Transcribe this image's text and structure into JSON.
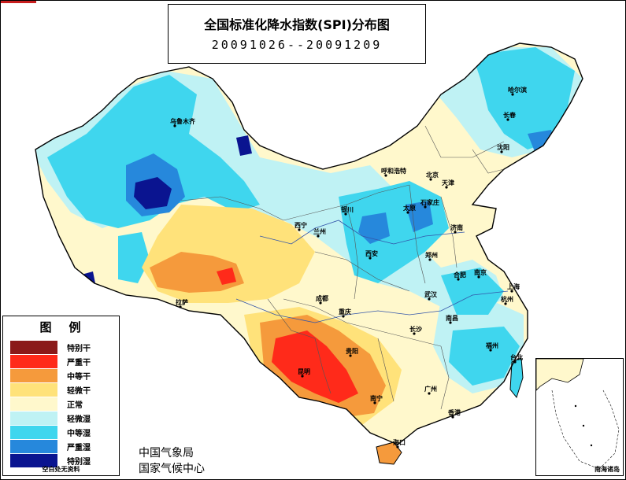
{
  "title": "全国标准化降水指数(SPI)分布图",
  "date_range": "20091026--20091209",
  "legend": {
    "title": "图例",
    "items": [
      {
        "label": "特别干",
        "color": "#8b1a1a"
      },
      {
        "label": "严重干",
        "color": "#ff2a1a"
      },
      {
        "label": "中等干",
        "color": "#f59a3c"
      },
      {
        "label": "轻微干",
        "color": "#ffe27a"
      },
      {
        "label": "正常",
        "color": "#fff8cc"
      },
      {
        "label": "轻微湿",
        "color": "#bff2f4"
      },
      {
        "label": "中等湿",
        "color": "#3fd6ee"
      },
      {
        "label": "严重湿",
        "color": "#2688dc"
      },
      {
        "label": "特别湿",
        "color": "#0a1490"
      }
    ],
    "note": "空白处无资料"
  },
  "organizations": [
    "中国气象局",
    "国家气候中心"
  ],
  "inset_label": "南海诸岛",
  "cities": [
    {
      "name": "乌鲁木齐"
    },
    {
      "name": "哈尔滨"
    },
    {
      "name": "长春"
    },
    {
      "name": "沈阳"
    },
    {
      "name": "呼和浩特"
    },
    {
      "name": "北京"
    },
    {
      "name": "天津"
    },
    {
      "name": "石家庄"
    },
    {
      "name": "太原"
    },
    {
      "name": "银川"
    },
    {
      "name": "济南"
    },
    {
      "name": "西宁"
    },
    {
      "name": "兰州"
    },
    {
      "name": "郑州"
    },
    {
      "name": "西安"
    },
    {
      "name": "合肥"
    },
    {
      "name": "南京"
    },
    {
      "name": "上海"
    },
    {
      "name": "杭州"
    },
    {
      "name": "武汉"
    },
    {
      "name": "成都"
    },
    {
      "name": "重庆"
    },
    {
      "name": "拉萨"
    },
    {
      "name": "南昌"
    },
    {
      "name": "长沙"
    },
    {
      "name": "福州"
    },
    {
      "name": "贵阳"
    },
    {
      "name": "台北"
    },
    {
      "name": "昆明"
    },
    {
      "name": "广州"
    },
    {
      "name": "南宁"
    },
    {
      "name": "香港"
    },
    {
      "name": "海口"
    }
  ]
}
